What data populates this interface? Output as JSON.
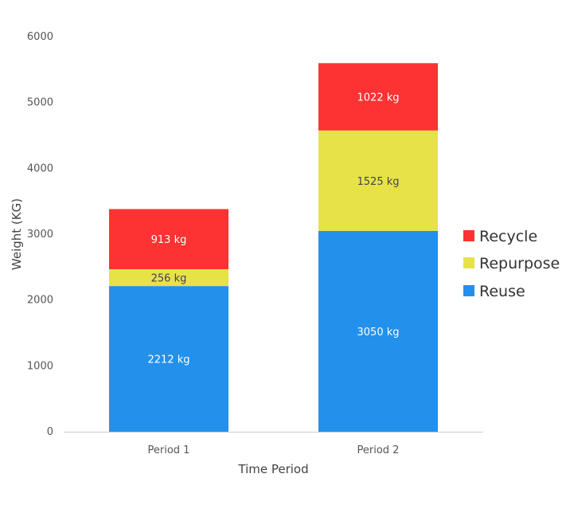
{
  "chart_data": {
    "type": "bar",
    "stacked": true,
    "categories": [
      "Period 1",
      "Period 2"
    ],
    "series": [
      {
        "name": "Reuse",
        "color": "#2390ec",
        "values": [
          2212,
          3050
        ],
        "labels": [
          "2212 kg",
          "3050 kg"
        ],
        "label_color": "#ffffff"
      },
      {
        "name": "Repurpose",
        "color": "#e6e248",
        "values": [
          256,
          1525
        ],
        "labels": [
          "256 kg",
          "1525 kg"
        ],
        "label_color": "#444444"
      },
      {
        "name": "Recycle",
        "color": "#fd3232",
        "values": [
          913,
          1022
        ],
        "labels": [
          "913 kg",
          "1022 kg"
        ],
        "label_color": "#ffffff"
      }
    ],
    "xlabel": "Time Period",
    "ylabel": "Weight (KG)",
    "ylim": [
      0,
      6000
    ],
    "yticks": [
      0,
      1000,
      2000,
      3000,
      4000,
      5000,
      6000
    ],
    "grid": false,
    "legend": {
      "position": "right",
      "order": [
        "Recycle",
        "Repurpose",
        "Reuse"
      ]
    }
  }
}
